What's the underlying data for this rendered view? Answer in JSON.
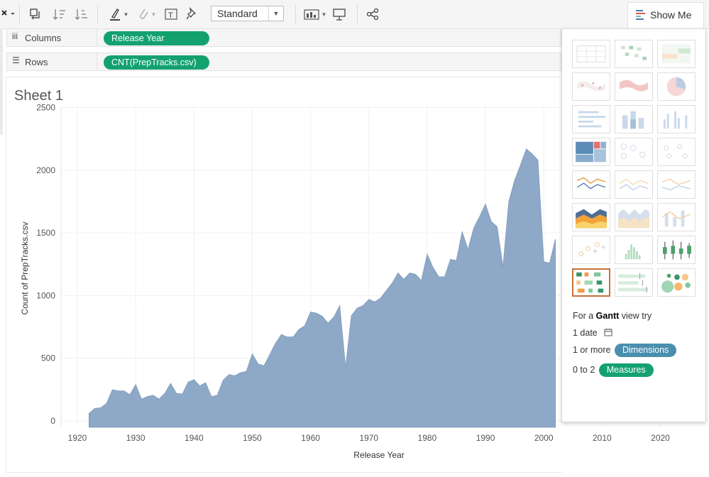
{
  "toolbar": {
    "mark_size_select": "Standard",
    "show_me_label": "Show Me"
  },
  "shelves": {
    "columns_label": "Columns",
    "columns_pill": "Release Year",
    "rows_label": "Rows",
    "rows_pill": "CNT(PrepTracks.csv)"
  },
  "sheet": {
    "title": "Sheet 1"
  },
  "colors": {
    "area": "#8ea8c7",
    "pill_green": "#14a170",
    "pill_blue": "#4a8fae",
    "selected_border": "#c8713a"
  },
  "show_me": {
    "hint_prefix": "For a",
    "hint_chart": "Gantt",
    "hint_suffix": "view try",
    "req_date": "1 date",
    "req_dimensions_prefix": "1 or more",
    "req_dimensions_pill": "Dimensions",
    "req_measures_prefix": "0 to 2",
    "req_measures_pill": "Measures",
    "selected_chart": "gantt"
  },
  "chart_data": {
    "type": "area",
    "title": "",
    "xlabel": "Release Year",
    "ylabel": "Count of PrepTracks.csv",
    "xlim": [
      1917,
      2026
    ],
    "ylim": [
      -30,
      2530
    ],
    "xticks": [
      1920,
      1930,
      1940,
      1950,
      1960,
      1970,
      1980,
      1990,
      2000,
      2010,
      2020
    ],
    "yticks": [
      0,
      500,
      1000,
      1500,
      2000,
      2500
    ],
    "x": [
      1922,
      1923,
      1924,
      1925,
      1926,
      1927,
      1928,
      1929,
      1930,
      1931,
      1932,
      1933,
      1934,
      1935,
      1936,
      1937,
      1938,
      1939,
      1940,
      1941,
      1942,
      1943,
      1944,
      1945,
      1946,
      1947,
      1948,
      1949,
      1950,
      1951,
      1952,
      1953,
      1954,
      1955,
      1956,
      1957,
      1958,
      1959,
      1960,
      1961,
      1962,
      1963,
      1964,
      1965,
      1966,
      1967,
      1968,
      1969,
      1970,
      1971,
      1972,
      1973,
      1974,
      1975,
      1976,
      1977,
      1978,
      1979,
      1980,
      1981,
      1982,
      1983,
      1984,
      1985,
      1986,
      1987,
      1988,
      1989,
      1990,
      1991,
      1992,
      1993,
      1994,
      1995,
      1996,
      1997,
      1998,
      1999,
      2000,
      2001,
      2002
    ],
    "values": [
      60,
      100,
      105,
      140,
      250,
      240,
      240,
      210,
      290,
      175,
      195,
      205,
      175,
      220,
      300,
      220,
      215,
      310,
      330,
      280,
      305,
      195,
      205,
      325,
      370,
      360,
      385,
      395,
      535,
      455,
      440,
      530,
      620,
      690,
      670,
      670,
      730,
      760,
      870,
      860,
      835,
      780,
      830,
      920,
      430,
      840,
      900,
      920,
      970,
      950,
      980,
      1040,
      1100,
      1180,
      1130,
      1180,
      1170,
      1120,
      1330,
      1225,
      1150,
      1150,
      1290,
      1280,
      1510,
      1370,
      1540,
      1630,
      1730,
      1590,
      1550,
      1230,
      1750,
      1920,
      2040,
      2170,
      2130,
      2080,
      1270,
      1260,
      1450
    ]
  }
}
